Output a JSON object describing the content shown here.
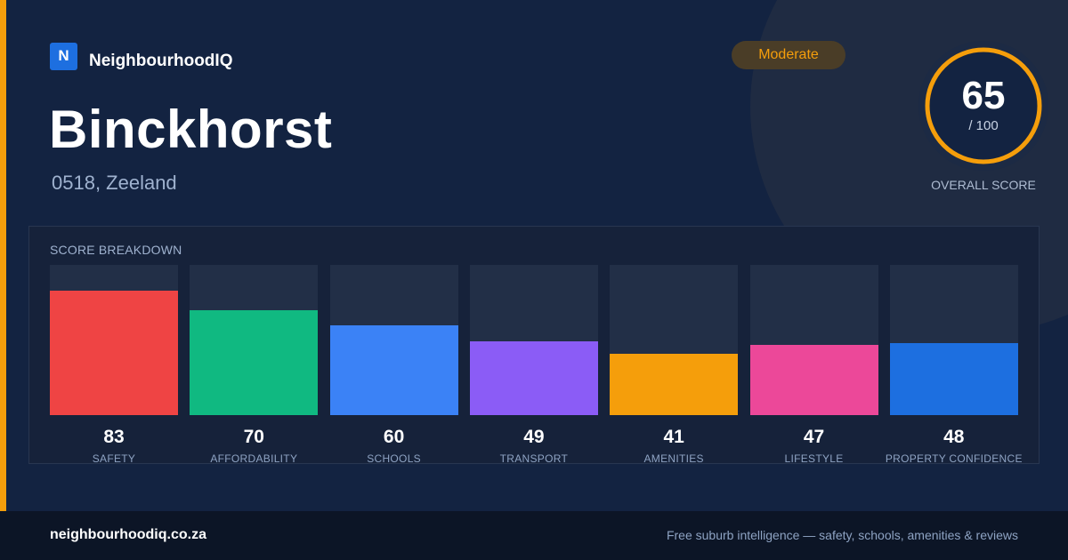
{
  "brand": {
    "logo_letter": "N",
    "name": "NeighbourhoodIQ"
  },
  "suburb": {
    "name": "Binckhorst",
    "location": "0518, Zeeland"
  },
  "badge": {
    "label": "Moderate",
    "color": "#f59e0b"
  },
  "overall": {
    "value": "65",
    "max_text": "/ 100",
    "label": "OVERALL SCORE",
    "fraction": 0.65,
    "ring_color": "#f59e0b"
  },
  "breakdown": {
    "title": "SCORE BREAKDOWN",
    "items": [
      {
        "label": "SAFETY",
        "value": "83",
        "score": 83,
        "color": "#ef4444"
      },
      {
        "label": "AFFORDABILITY",
        "value": "70",
        "score": 70,
        "color": "#10b981"
      },
      {
        "label": "SCHOOLS",
        "value": "60",
        "score": 60,
        "color": "#3b82f6"
      },
      {
        "label": "TRANSPORT",
        "value": "49",
        "score": 49,
        "color": "#8b5cf6"
      },
      {
        "label": "AMENITIES",
        "value": "41",
        "score": 41,
        "color": "#f59e0b"
      },
      {
        "label": "LIFESTYLE",
        "value": "47",
        "score": 47,
        "color": "#ec4899"
      },
      {
        "label": "PROPERTY CONFIDENCE",
        "value": "48",
        "score": 48,
        "color": "#1d6fe0"
      }
    ]
  },
  "footer": {
    "url": "neighbourhoodiq.co.za",
    "tagline": "Free suburb intelligence — safety, schools, amenities & reviews"
  },
  "colors": {
    "background": "#132341",
    "accent": "#f59e0b",
    "brand": "#1d6fe0"
  }
}
